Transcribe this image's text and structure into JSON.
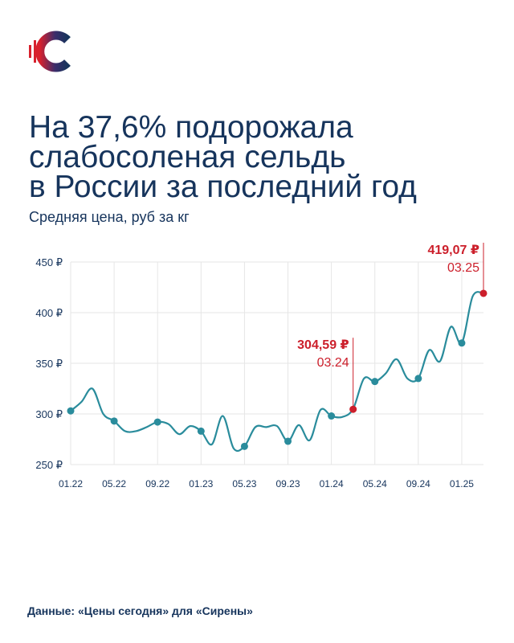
{
  "header": {
    "title": "На 37,6% подорожала\nслабосоленая сельдь\nв России за последний год",
    "subtitle": "Средняя цена, руб за кг"
  },
  "footer": {
    "source": "Данные: «Цены сегодня» для «Сирены»"
  },
  "colors": {
    "line": "#2a8c9c",
    "highlight": "#cc1f2b",
    "text": "#16345c",
    "grid": "#e6e6e6"
  },
  "chart_data": {
    "type": "line",
    "ylabel": "Средняя цена, руб за кг",
    "ylim": [
      250,
      450
    ],
    "y_ticks": [
      250,
      300,
      350,
      400,
      450
    ],
    "y_tick_labels": [
      "250 ₽",
      "300 ₽",
      "350 ₽",
      "400 ₽",
      "450 ₽"
    ],
    "x_tick_labels": [
      "01.22",
      "05.22",
      "09.22",
      "01.23",
      "05.23",
      "09.23",
      "01.24",
      "05.24",
      "09.24",
      "01.25"
    ],
    "x_tick_index": [
      0,
      4,
      8,
      12,
      16,
      20,
      24,
      28,
      32,
      36
    ],
    "x": [
      "01.22",
      "02.22",
      "03.22",
      "04.22",
      "05.22",
      "06.22",
      "07.22",
      "08.22",
      "09.22",
      "10.22",
      "11.22",
      "12.22",
      "01.23",
      "02.23",
      "03.23",
      "04.23",
      "05.23",
      "06.23",
      "07.23",
      "08.23",
      "09.23",
      "10.23",
      "11.23",
      "12.23",
      "01.24",
      "02.24",
      "03.24",
      "04.24",
      "05.24",
      "06.24",
      "07.24",
      "08.24",
      "09.24",
      "10.24",
      "11.24",
      "12.24",
      "01.25",
      "02.25",
      "03.25"
    ],
    "values": [
      303,
      312,
      325,
      300,
      293,
      283,
      283,
      287,
      292,
      290,
      280,
      288,
      283,
      270,
      298,
      266,
      268,
      287,
      287,
      288,
      273,
      289,
      274,
      304,
      298,
      297,
      305,
      335,
      332,
      340,
      354,
      335,
      335,
      363,
      352,
      386,
      370,
      416,
      419.07
    ],
    "markers": [
      {
        "index": 0,
        "value": 303
      },
      {
        "index": 4,
        "value": 293
      },
      {
        "index": 8,
        "value": 292
      },
      {
        "index": 12,
        "value": 283
      },
      {
        "index": 16,
        "value": 268
      },
      {
        "index": 20,
        "value": 273
      },
      {
        "index": 24,
        "value": 298
      },
      {
        "index": 28,
        "value": 332
      },
      {
        "index": 32,
        "value": 335
      },
      {
        "index": 36,
        "value": 370
      }
    ],
    "annotations": [
      {
        "index": 26,
        "value": 304.59,
        "label": "304,59 ₽",
        "date": "03.24"
      },
      {
        "index": 38,
        "value": 419.07,
        "label": "419,07 ₽",
        "date": "03.25"
      }
    ],
    "grid": true
  }
}
